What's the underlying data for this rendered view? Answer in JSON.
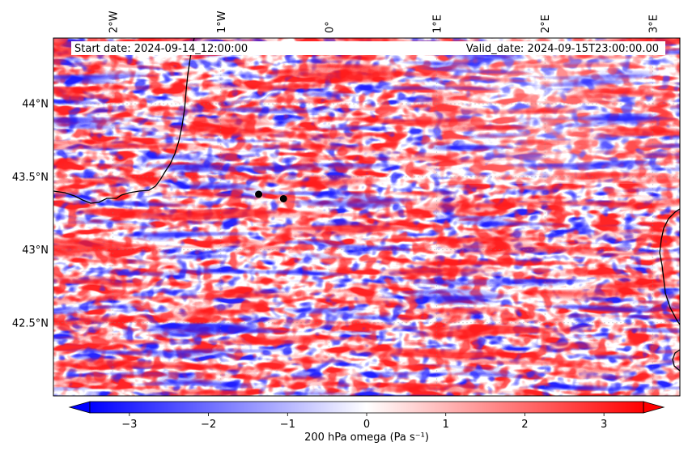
{
  "header": {
    "start_text": "Start date: 2024-09-14_12:00:00",
    "valid_text": "Valid_date: 2024-09-15T23:00:00.00"
  },
  "map": {
    "lon_range": [
      -2.55,
      3.25
    ],
    "lat_range": [
      42.0,
      44.45
    ],
    "lon_ticks": [
      {
        "value": -2,
        "label": "2°W"
      },
      {
        "value": -1,
        "label": "1°W"
      },
      {
        "value": 0,
        "label": "0°"
      },
      {
        "value": 1,
        "label": "1°E"
      },
      {
        "value": 2,
        "label": "2°E"
      },
      {
        "value": 3,
        "label": "3°E"
      }
    ],
    "lat_ticks": [
      {
        "value": 44.0,
        "label": "44°N"
      },
      {
        "value": 43.5,
        "label": "43.5°N"
      },
      {
        "value": 43.0,
        "label": "43°N"
      },
      {
        "value": 42.5,
        "label": "42.5°N"
      }
    ],
    "gridlines": true,
    "markers": [
      {
        "lon": -0.65,
        "lat": 43.38
      },
      {
        "lon": -0.42,
        "lat": 43.35
      }
    ],
    "field_colors": {
      "negative": "#0000ff",
      "neutral": "#ffffff",
      "positive": "#ff0000"
    }
  },
  "colorbar": {
    "label": "200 hPa omega (Pa s⁻¹)",
    "range": [
      -3.5,
      3.5
    ],
    "extend": "both",
    "ticks": [
      {
        "value": -3,
        "label": "−3"
      },
      {
        "value": -2,
        "label": "−2"
      },
      {
        "value": -1,
        "label": "−1"
      },
      {
        "value": 0,
        "label": "0"
      },
      {
        "value": 1,
        "label": "1"
      },
      {
        "value": 2,
        "label": "2"
      },
      {
        "value": 3,
        "label": "3"
      }
    ]
  }
}
